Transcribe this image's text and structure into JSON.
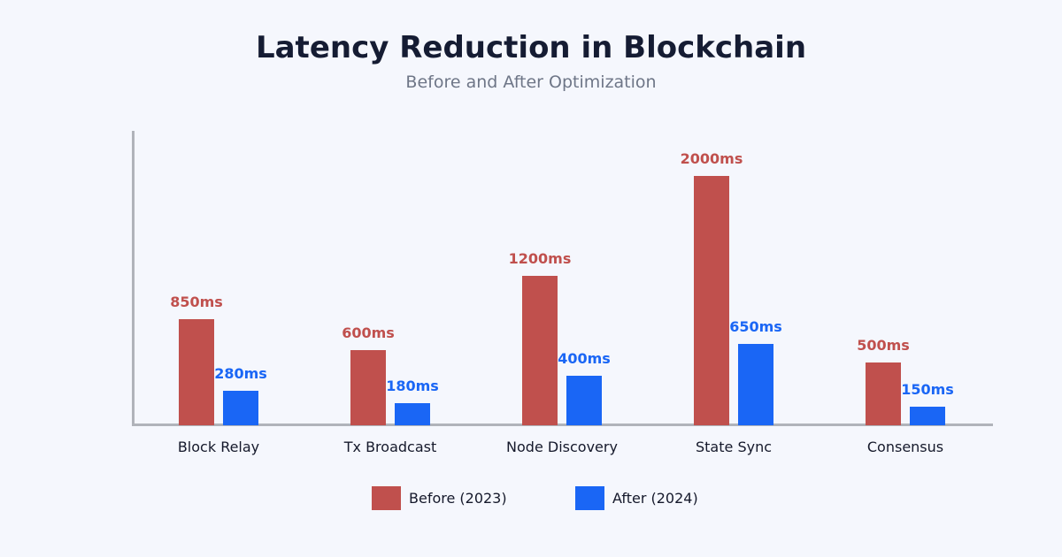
{
  "header": {
    "title": "Latency Reduction in Blockchain",
    "subtitle": "Before and After Optimization"
  },
  "chart_data": {
    "type": "bar",
    "categories": [
      "Block Relay",
      "Tx Broadcast",
      "Node Discovery",
      "State Sync",
      "Consensus"
    ],
    "series": [
      {
        "name": "Before (2023)",
        "values": [
          850,
          600,
          1200,
          2000,
          500
        ],
        "labels": [
          "850ms",
          "600ms",
          "1200ms",
          "2000ms",
          "500ms"
        ],
        "color": "#c0504d"
      },
      {
        "name": "After (2024)",
        "values": [
          280,
          180,
          400,
          650,
          150
        ],
        "labels": [
          "280ms",
          "180ms",
          "400ms",
          "650ms",
          "150ms"
        ],
        "color": "#1a66f5"
      }
    ],
    "unit": "ms",
    "ylim": [
      0,
      2000
    ],
    "grid": false,
    "legend_position": "bottom",
    "legend": [
      "Before (2023)",
      "After (2024)"
    ]
  },
  "colors": {
    "background": "#f5f7fd",
    "axis": "#b0b3ba",
    "title": "#151c33",
    "subtitle": "#6e7687",
    "category_label": "#15192b",
    "before": "#c0504d",
    "after": "#1a66f5"
  }
}
